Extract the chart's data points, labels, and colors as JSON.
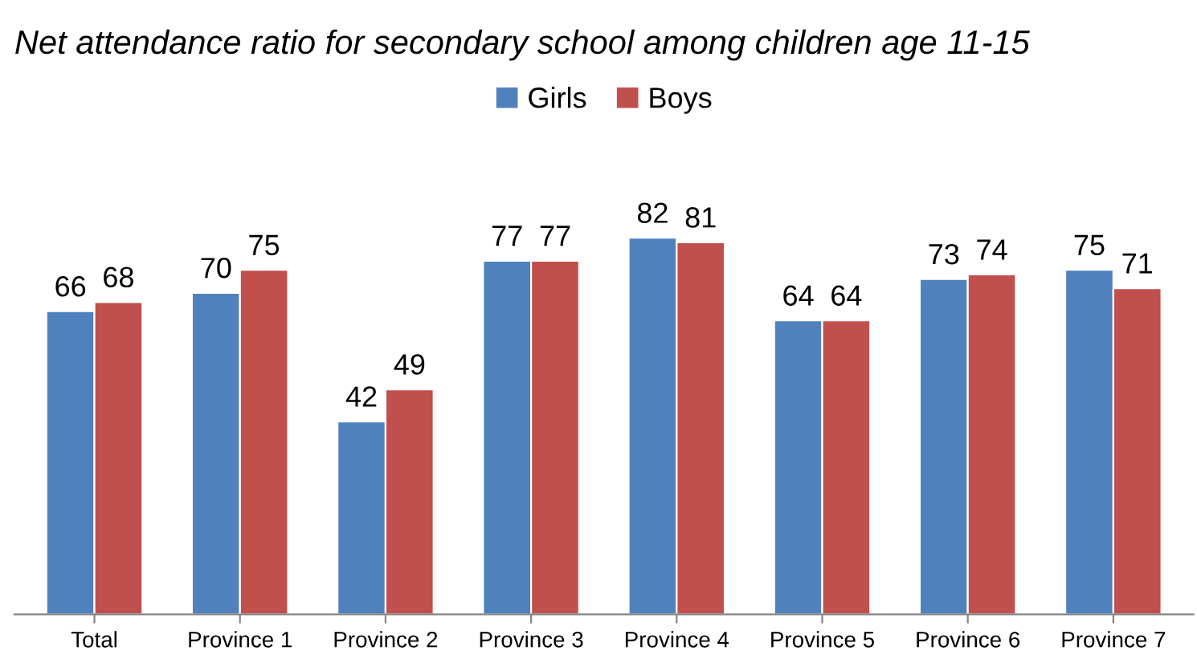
{
  "chart_data": {
    "type": "bar",
    "title": "Net attendance ratio for secondary school among children age 11-15",
    "categories": [
      "Total",
      "Province 1",
      "Province 2",
      "Province 3",
      "Province 4",
      "Province 5",
      "Province 6",
      "Province 7"
    ],
    "series": [
      {
        "name": "Girls",
        "color": "#4f81bd",
        "values": [
          66,
          70,
          42,
          77,
          82,
          64,
          73,
          75
        ]
      },
      {
        "name": "Boys",
        "color": "#c0504d",
        "values": [
          68,
          75,
          49,
          77,
          81,
          64,
          74,
          71
        ]
      }
    ],
    "data_labels": true,
    "legend": "top",
    "grid": false
  }
}
